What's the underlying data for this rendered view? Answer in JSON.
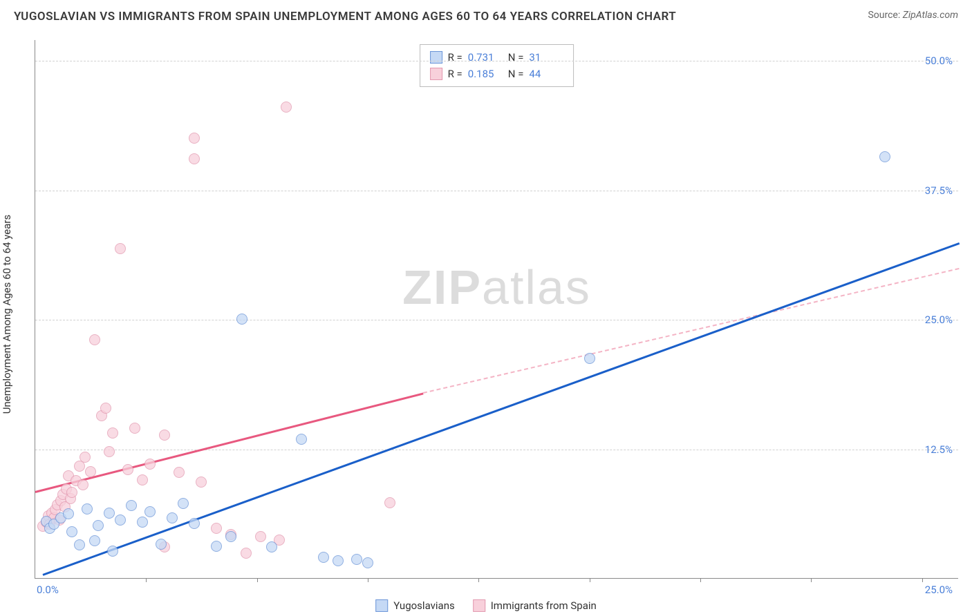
{
  "header": {
    "title": "YUGOSLAVIAN VS IMMIGRANTS FROM SPAIN UNEMPLOYMENT AMONG AGES 60 TO 64 YEARS CORRELATION CHART",
    "source_label": "Source:",
    "source_name": "ZipAtlas.com"
  },
  "watermark": {
    "left": "ZIP",
    "right": "atlas"
  },
  "chart": {
    "type": "scatter",
    "ylabel": "Unemployment Among Ages 60 to 64 years",
    "xlim": [
      0,
      25
    ],
    "ylim": [
      0,
      52
    ],
    "x_origin_label": "0.0%",
    "x_end_label": "25.0%",
    "xtick_positions": [
      3,
      6,
      9,
      12,
      15,
      18,
      21,
      24
    ],
    "yticks": [
      {
        "value": 12.5,
        "label": "12.5%"
      },
      {
        "value": 25.0,
        "label": "25.0%"
      },
      {
        "value": 37.5,
        "label": "37.5%"
      },
      {
        "value": 50.0,
        "label": "50.0%"
      }
    ],
    "colors": {
      "blue_fill": "#c5d9f5",
      "blue_stroke": "#6b95d8",
      "blue_line": "#1a5fc9",
      "pink_fill": "#f8d0db",
      "pink_stroke": "#e298af",
      "pink_line": "#e8587f",
      "pink_dash": "#f4b4c5",
      "tick_text": "#4a7fd8",
      "grid": "#d0d0d0",
      "axis": "#888888",
      "background": "#ffffff"
    },
    "series": [
      {
        "name": "Yugoslavians",
        "color_key": "blue",
        "R": "0.731",
        "N": "31",
        "trend": {
          "x1": 0.2,
          "y1": 0.5,
          "x2": 25,
          "y2": 32.5
        },
        "points": [
          [
            0.3,
            5.5
          ],
          [
            0.4,
            4.8
          ],
          [
            0.5,
            5.2
          ],
          [
            0.7,
            5.8
          ],
          [
            0.9,
            6.2
          ],
          [
            1.0,
            4.5
          ],
          [
            1.2,
            3.2
          ],
          [
            1.4,
            6.7
          ],
          [
            1.6,
            3.6
          ],
          [
            1.7,
            5.1
          ],
          [
            2.0,
            6.3
          ],
          [
            2.1,
            2.6
          ],
          [
            2.3,
            5.6
          ],
          [
            2.6,
            7.0
          ],
          [
            2.9,
            5.4
          ],
          [
            3.1,
            6.4
          ],
          [
            3.4,
            3.3
          ],
          [
            3.7,
            5.8
          ],
          [
            4.0,
            7.2
          ],
          [
            4.3,
            5.3
          ],
          [
            4.9,
            3.1
          ],
          [
            5.3,
            4.0
          ],
          [
            5.6,
            25.0
          ],
          [
            6.4,
            3.0
          ],
          [
            7.2,
            13.4
          ],
          [
            7.8,
            2.0
          ],
          [
            8.2,
            1.7
          ],
          [
            8.7,
            1.8
          ],
          [
            9.0,
            1.5
          ],
          [
            15.0,
            21.2
          ],
          [
            23.0,
            40.7
          ]
        ]
      },
      {
        "name": "Immigrants from Spain",
        "color_key": "pink",
        "R": "0.185",
        "N": "44",
        "trend_solid": {
          "x1": 0.0,
          "y1": 8.5,
          "x2": 10.5,
          "y2": 18.0
        },
        "trend_dashed": {
          "x1": 10.5,
          "y1": 18.0,
          "x2": 25,
          "y2": 30.0
        },
        "points": [
          [
            0.2,
            5.0
          ],
          [
            0.3,
            5.4
          ],
          [
            0.35,
            6.0
          ],
          [
            0.4,
            5.2
          ],
          [
            0.45,
            6.3
          ],
          [
            0.5,
            5.8
          ],
          [
            0.55,
            6.6
          ],
          [
            0.6,
            7.1
          ],
          [
            0.65,
            5.6
          ],
          [
            0.7,
            7.5
          ],
          [
            0.75,
            8.1
          ],
          [
            0.8,
            6.9
          ],
          [
            0.85,
            8.6
          ],
          [
            0.9,
            9.9
          ],
          [
            0.95,
            7.7
          ],
          [
            1.0,
            8.3
          ],
          [
            1.1,
            9.4
          ],
          [
            1.2,
            10.8
          ],
          [
            1.3,
            9.0
          ],
          [
            1.35,
            11.7
          ],
          [
            1.5,
            10.3
          ],
          [
            1.6,
            23.0
          ],
          [
            1.8,
            15.7
          ],
          [
            1.9,
            16.4
          ],
          [
            2.0,
            12.2
          ],
          [
            2.1,
            14.0
          ],
          [
            2.3,
            31.8
          ],
          [
            2.5,
            10.5
          ],
          [
            2.7,
            14.5
          ],
          [
            2.9,
            9.5
          ],
          [
            3.1,
            11.0
          ],
          [
            3.5,
            13.8
          ],
          [
            3.9,
            10.2
          ],
          [
            3.5,
            3.0
          ],
          [
            4.3,
            42.5
          ],
          [
            4.3,
            40.5
          ],
          [
            4.5,
            9.3
          ],
          [
            4.9,
            4.8
          ],
          [
            5.3,
            4.2
          ],
          [
            5.7,
            2.4
          ],
          [
            6.1,
            4.0
          ],
          [
            6.6,
            3.7
          ],
          [
            9.6,
            7.3
          ],
          [
            6.8,
            45.5
          ]
        ]
      }
    ],
    "corr_legend": {
      "r_label": "R =",
      "n_label": "N ="
    },
    "bottom_legend": {
      "blue_label": "Yugoslavians",
      "pink_label": "Immigrants from Spain"
    }
  }
}
